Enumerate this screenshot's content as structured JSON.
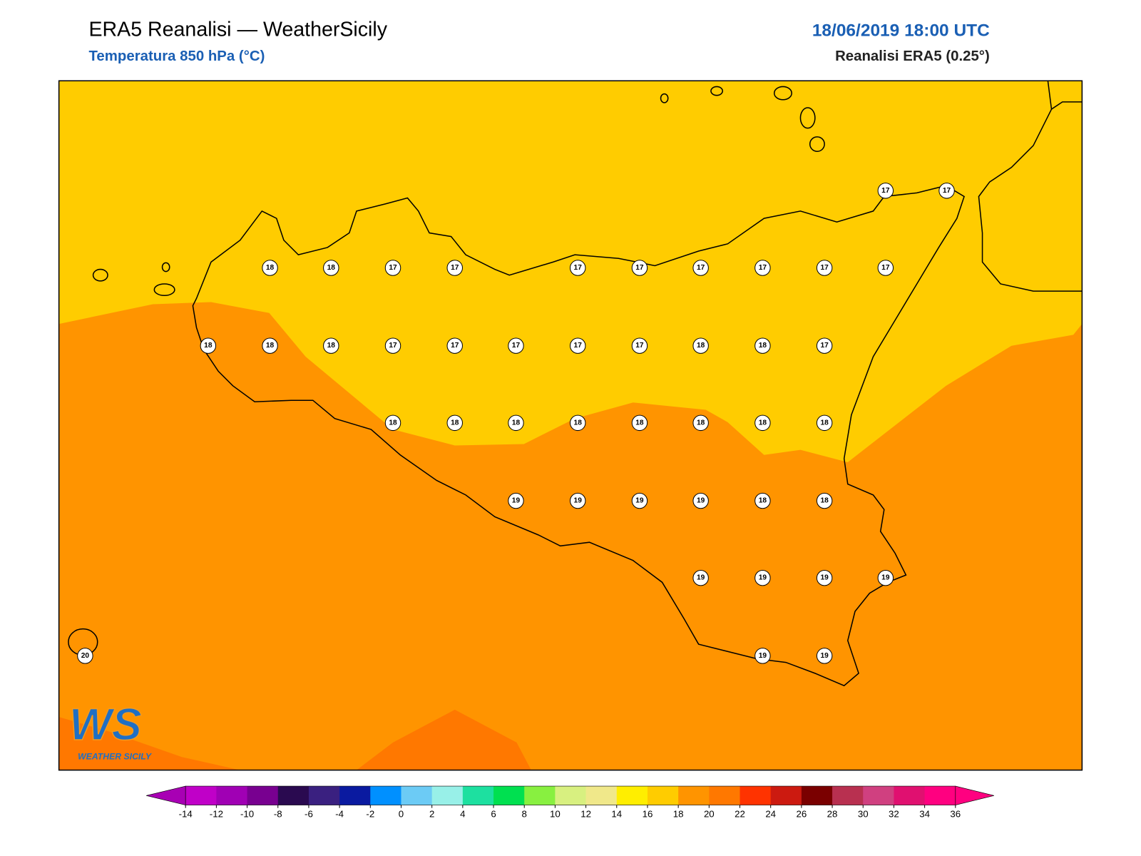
{
  "header": {
    "title": "ERA5 Reanalisi — WeatherSicily",
    "subtitle": "Temperatura 850 hPa (°C)",
    "datetime": "18/06/2019 18:00 UTC",
    "source": "Reanalisi ERA5 (0.25°)"
  },
  "stations": [
    17,
    17,
    18,
    18,
    17,
    17,
    17,
    17,
    17,
    17,
    17,
    17,
    18,
    18,
    18,
    17,
    17,
    17,
    17,
    17,
    18,
    18,
    17,
    18,
    18,
    18,
    18,
    18,
    18,
    18,
    18,
    19,
    19,
    19,
    19,
    18,
    18,
    19,
    19,
    19,
    19,
    20,
    19,
    19
  ],
  "colorbar": {
    "ticks": [
      -14,
      -12,
      -10,
      -8,
      -6,
      -4,
      -2,
      0,
      2,
      4,
      6,
      8,
      10,
      12,
      14,
      16,
      18,
      20,
      22,
      24,
      26,
      28,
      30,
      32,
      34,
      36
    ],
    "colors": [
      "#c000c8",
      "#a000b4",
      "#780090",
      "#2a0a50",
      "#3a2080",
      "#0a1aa0",
      "#0090ff",
      "#6ccbf5",
      "#98f0e8",
      "#1de0a0",
      "#00e050",
      "#88f040",
      "#d8f080",
      "#f0e88a",
      "#ffee00",
      "#ffcc00",
      "#ff9400",
      "#ff7800",
      "#ff3300",
      "#cc1a10",
      "#7a0000",
      "#b83050",
      "#d04080",
      "#e01070",
      "#ff0080"
    ],
    "extend_min_color": "#a800b4",
    "extend_max_color": "#ff0080"
  },
  "logo": {
    "text": "WS",
    "caption": "WEATHER SICILY"
  }
}
